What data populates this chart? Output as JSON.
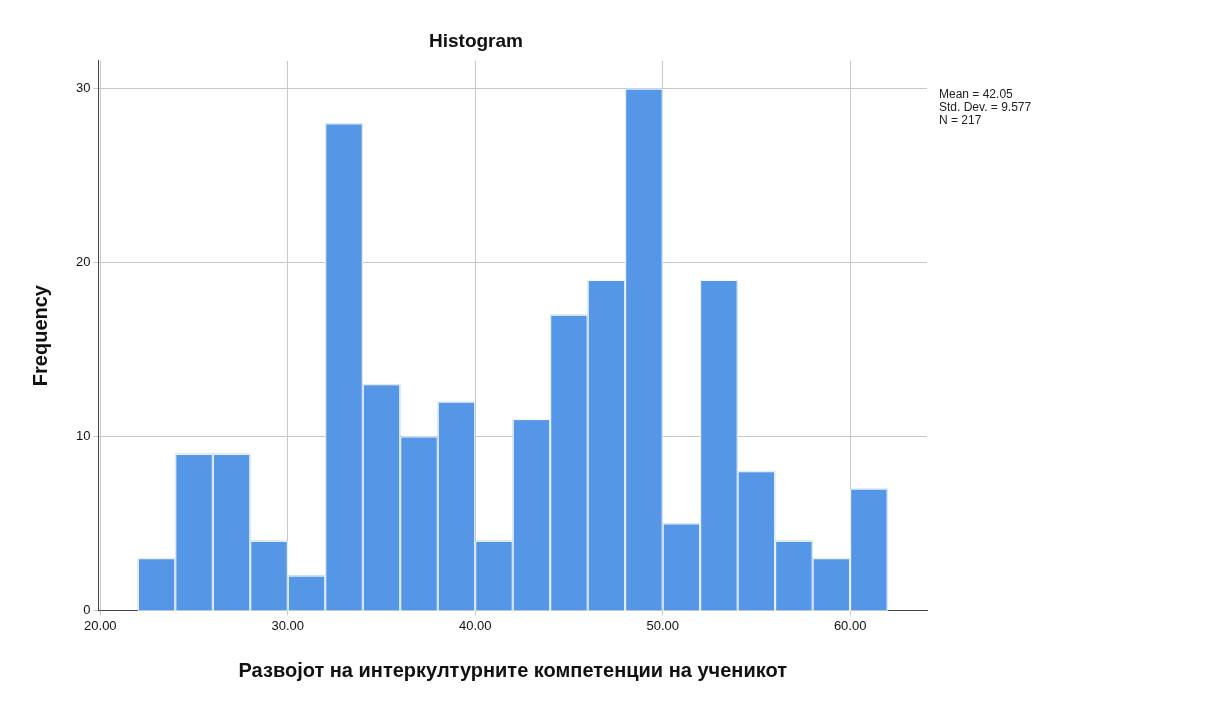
{
  "chart_data": {
    "type": "histogram",
    "title": "Histogram",
    "xlabel": "Развојот на интеркултурните компетенции на ученикот",
    "ylabel": "Frequency",
    "bins": [
      22,
      24,
      26,
      28,
      30,
      32,
      34,
      36,
      38,
      40,
      42,
      44,
      46,
      48,
      50,
      52,
      54,
      56,
      58,
      60,
      62
    ],
    "values": [
      3,
      9,
      9,
      4,
      2,
      28,
      13,
      10,
      12,
      4,
      11,
      17,
      19,
      30,
      5,
      19,
      8,
      4,
      3,
      7
    ],
    "color": "#5596e6",
    "xlim": [
      19.9,
      64.1
    ],
    "xticks": [
      {
        "value": 20,
        "label": "20.00"
      },
      {
        "value": 30,
        "label": "30.00"
      },
      {
        "value": 40,
        "label": "40.00"
      },
      {
        "value": 50,
        "label": "50.00"
      },
      {
        "value": 60,
        "label": "60.00"
      }
    ],
    "ylim": [
      0,
      31.6
    ],
    "yticks": [
      0,
      10,
      20,
      30
    ],
    "grid": true,
    "annotations": [
      "Mean = 42.05",
      "Std. Dev. = 9.577",
      "N = 217"
    ]
  }
}
